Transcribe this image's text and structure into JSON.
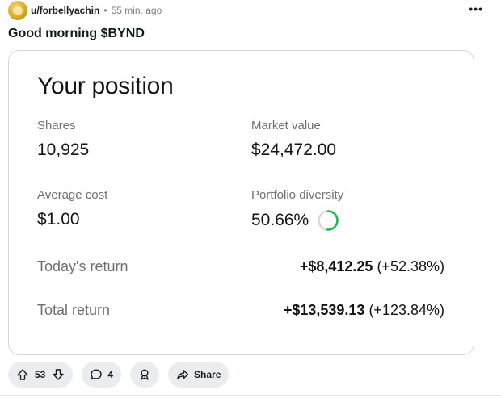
{
  "post": {
    "username": "u/forbellyachin",
    "separator": "•",
    "timestamp": "55 min. ago",
    "more_label": "•••",
    "title": "Good morning $BYND"
  },
  "position_card": {
    "title": "Your position",
    "shares": {
      "label": "Shares",
      "value": "10,925"
    },
    "market_value": {
      "label": "Market value",
      "value": "$24,472.00"
    },
    "average_cost": {
      "label": "Average cost",
      "value": "$1.00"
    },
    "portfolio_diversity": {
      "label": "Portfolio diversity",
      "value": "50.66%",
      "ring_fraction": 0.5066,
      "ring_color": "#1fb54c"
    },
    "todays_return": {
      "label": "Today's return",
      "amount": "+$8,412.25",
      "percent": "(+52.38%)"
    },
    "total_return": {
      "label": "Total return",
      "amount": "+$13,539.13",
      "percent": "(+123.84%)"
    }
  },
  "actions": {
    "vote_count": "53",
    "comment_count": "4",
    "share_label": "Share",
    "icons": {
      "upvote": "upvote-arrow-icon",
      "downvote": "downvote-arrow-icon",
      "comment": "comment-bubble-icon",
      "award": "award-ribbon-icon",
      "share": "share-arrow-icon"
    }
  }
}
